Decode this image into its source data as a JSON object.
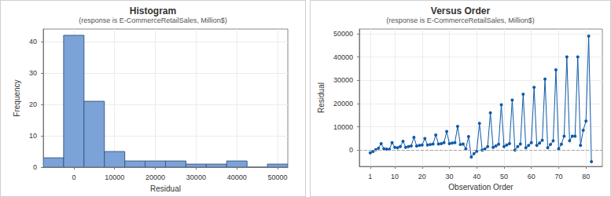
{
  "chart_data": [
    {
      "type": "histogram",
      "title": "Histogram",
      "subtitle": "(response is E-CommerceRetailSales, Million$)",
      "x_label": "Residual",
      "y_label": "Frequency",
      "bins": [
        -7500,
        -2500,
        2500,
        7500,
        12500,
        17500,
        22500,
        27500,
        32500,
        37500,
        42500,
        47500,
        52500
      ],
      "values": [
        3,
        42,
        21,
        5,
        2,
        2,
        2,
        1,
        1,
        2,
        0,
        1
      ],
      "color": "#7ba3d8",
      "xlim": [
        -7500,
        52500
      ],
      "xticks": [
        0,
        10000,
        20000,
        30000,
        40000,
        50000
      ],
      "ylim": [
        0,
        44
      ],
      "yticks": [
        0,
        10,
        20,
        30,
        40
      ],
      "grid": true
    },
    {
      "type": "line",
      "title": "Versus Order",
      "subtitle": "(response is E-CommerceRetailSales, Million$)",
      "x_label": "Observation Order",
      "y_label": "Residual",
      "x": [
        1,
        2,
        3,
        4,
        5,
        6,
        7,
        8,
        9,
        10,
        11,
        12,
        13,
        14,
        15,
        16,
        17,
        18,
        19,
        20,
        21,
        22,
        23,
        24,
        25,
        26,
        27,
        28,
        29,
        30,
        31,
        32,
        33,
        34,
        35,
        36,
        37,
        38,
        39,
        40,
        41,
        42,
        43,
        44,
        45,
        46,
        47,
        48,
        49,
        50,
        51,
        52,
        53,
        54,
        55,
        56,
        57,
        58,
        59,
        60,
        61,
        62,
        63,
        64,
        65,
        66,
        67,
        68,
        69,
        70,
        71,
        72,
        73,
        74,
        75,
        76,
        77,
        78,
        79,
        80,
        81,
        82
      ],
      "values": [
        -1200,
        -600,
        200,
        800,
        2800,
        600,
        400,
        300,
        3200,
        1200,
        1000,
        1500,
        3800,
        1200,
        1500,
        1800,
        5500,
        1800,
        2000,
        2200,
        5000,
        2200,
        2400,
        2600,
        6500,
        2600,
        2800,
        3200,
        8000,
        2800,
        3000,
        3200,
        10200,
        2400,
        2600,
        500,
        5800,
        -3000,
        -1500,
        -500,
        11500,
        0,
        500,
        1500,
        16000,
        1200,
        1800,
        2500,
        19500,
        1500,
        2200,
        2800,
        21500,
        0,
        1500,
        2600,
        24000,
        1000,
        2000,
        3200,
        27000,
        2000,
        3000,
        4200,
        30500,
        1000,
        2400,
        4000,
        34500,
        500,
        2500,
        6000,
        40000,
        4000,
        6000,
        6000,
        40000,
        2000,
        8500,
        12500,
        49000,
        -5000
      ],
      "color": "#0f5aa8",
      "marker": "circle",
      "reference_line": {
        "y": 0,
        "line_style": "dashed",
        "color": "#a6a6a6"
      },
      "xlim": [
        -3,
        86
      ],
      "xticks": [
        1,
        10,
        20,
        30,
        40,
        50,
        60,
        70,
        80
      ],
      "ylim": [
        -7000,
        52000
      ],
      "yticks": [
        0,
        10000,
        20000,
        30000,
        40000,
        50000
      ],
      "grid": true
    }
  ]
}
